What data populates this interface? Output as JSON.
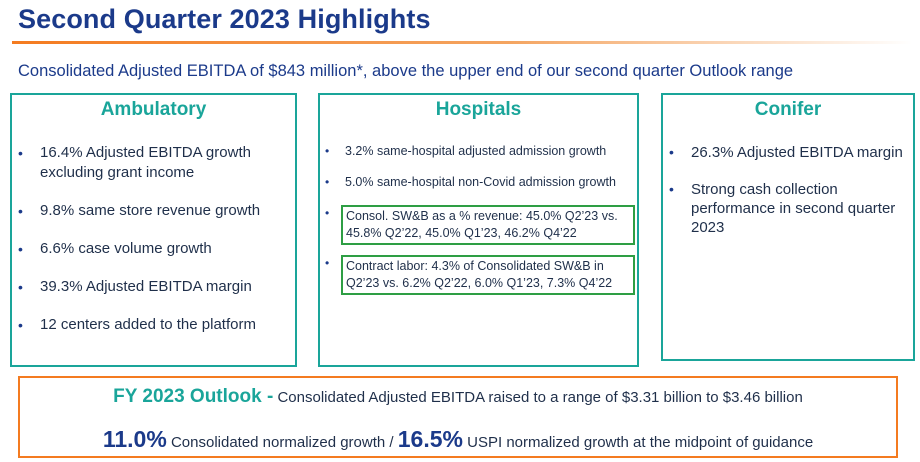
{
  "header": {
    "title": "Second Quarter 2023 Highlights",
    "subtitle": "Consolidated Adjusted EBITDA of $843 million*, above the upper end of our second quarter Outlook range"
  },
  "bullet_char": "•",
  "ambulatory": {
    "heading": "Ambulatory",
    "items": [
      "16.4% Adjusted EBITDA growth excluding grant income",
      "9.8% same store revenue growth",
      "6.6% case volume growth",
      "39.3% Adjusted EBITDA margin",
      "12 centers added to the platform"
    ]
  },
  "hospitals": {
    "heading": "Hospitals",
    "items": [
      "3.2% same-hospital adjusted admission growth",
      "5.0% same-hospital non-Covid admission growth",
      "Consol. SW&B as a % revenue: 45.0% Q2’23 vs. 45.8% Q2’22, 45.0% Q1’23, 46.2% Q4’22",
      "Contract labor: 4.3% of Consolidated SW&B in Q2’23 vs. 6.2% Q2’22, 6.0% Q1’23, 7.3% Q4’22"
    ]
  },
  "conifer": {
    "heading": "Conifer",
    "items": [
      "26.3% Adjusted EBITDA margin",
      "Strong cash collection performance in second quarter 2023"
    ]
  },
  "outlook": {
    "label": "FY 2023 Outlook -",
    "line1_text": "Consolidated Adjusted EBITDA raised to a range of $3.31 billion to $3.46 billion",
    "value1": "11.0%",
    "text1": "Consolidated normalized growth /",
    "value2": "16.5%",
    "text2": "USPI normalized growth at the midpoint of guidance"
  },
  "colors": {
    "title": "#1b3a8a",
    "panel_border": "#1aa59a",
    "highlight_box": "#2e9e44",
    "outlook_border": "#f47b20"
  }
}
